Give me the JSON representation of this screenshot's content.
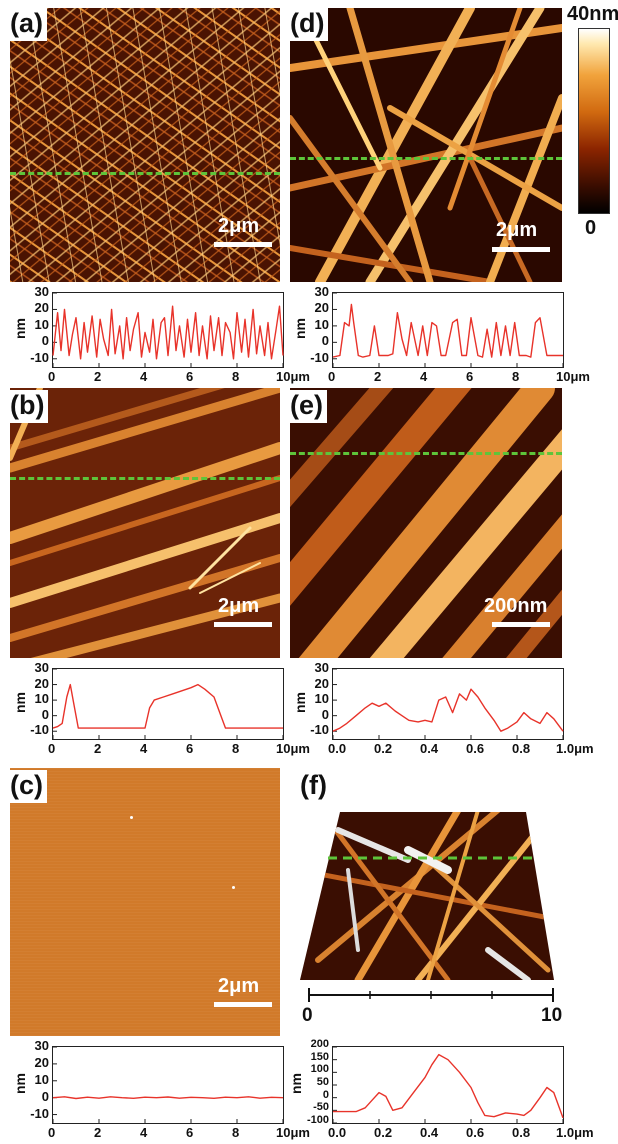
{
  "panels": {
    "a": {
      "label": "(a)",
      "scalebar": "2μm"
    },
    "b": {
      "label": "(b)",
      "scalebar": "2μm"
    },
    "c": {
      "label": "(c)",
      "scalebar": "2μm"
    },
    "d": {
      "label": "(d)",
      "scalebar": "2μm"
    },
    "e": {
      "label": "(e)",
      "scalebar": "200nm"
    },
    "f": {
      "label": "(f)",
      "axis_ticks": [
        "0",
        "10"
      ]
    }
  },
  "colorbar": {
    "max": "40nm",
    "min": "0"
  },
  "colors": {
    "guide_line": "#5ec43a",
    "profile": "#e8332a",
    "afm_dark": "#3a0d00",
    "afm_bright": "#ffd58a",
    "flat": "#d17a2a"
  },
  "chart_data": [
    {
      "type": "line",
      "panel": "a",
      "ylabel": "nm",
      "xunit": "μm",
      "x_ticks": [
        "0",
        "2",
        "4",
        "6",
        "8",
        "10μm"
      ],
      "y_ticks": [
        "30",
        "20",
        "10",
        "0",
        "-10"
      ],
      "xlim": [
        0,
        10
      ],
      "ylim": [
        -15,
        30
      ],
      "x": [
        0,
        0.2,
        0.35,
        0.5,
        0.7,
        0.85,
        1.0,
        1.2,
        1.35,
        1.5,
        1.7,
        1.9,
        2.05,
        2.2,
        2.4,
        2.55,
        2.7,
        2.9,
        3.05,
        3.2,
        3.35,
        3.5,
        3.7,
        3.85,
        4.0,
        4.2,
        4.35,
        4.5,
        4.7,
        4.85,
        5.0,
        5.2,
        5.35,
        5.5,
        5.7,
        5.85,
        6.0,
        6.2,
        6.35,
        6.5,
        6.7,
        6.85,
        7.0,
        7.2,
        7.35,
        7.5,
        7.7,
        7.85,
        8.0,
        8.2,
        8.35,
        8.5,
        8.7,
        8.85,
        9.0,
        9.2,
        9.35,
        9.5,
        9.7,
        9.85,
        10
      ],
      "y": [
        -8,
        18,
        -5,
        20,
        -8,
        5,
        15,
        -10,
        12,
        -6,
        16,
        -9,
        14,
        2,
        -8,
        20,
        -7,
        10,
        -10,
        15,
        -5,
        8,
        18,
        -9,
        6,
        -6,
        14,
        -10,
        12,
        15,
        -8,
        22,
        -5,
        10,
        -9,
        14,
        -6,
        18,
        -8,
        10,
        -10,
        16,
        -5,
        15,
        -8,
        12,
        6,
        -10,
        18,
        -6,
        14,
        -9,
        20,
        -7,
        10,
        -8,
        12,
        -10,
        8,
        22,
        -8
      ]
    },
    {
      "type": "line",
      "panel": "d",
      "ylabel": "nm",
      "xunit": "μm",
      "x_ticks": [
        "0",
        "2",
        "4",
        "6",
        "8",
        "10μm"
      ],
      "y_ticks": [
        "30",
        "20",
        "10",
        "0",
        "-10"
      ],
      "xlim": [
        0,
        10
      ],
      "ylim": [
        -15,
        30
      ],
      "x": [
        0,
        0.3,
        0.5,
        0.7,
        0.8,
        0.9,
        1.1,
        1.3,
        1.6,
        1.8,
        2.0,
        2.4,
        2.6,
        2.8,
        3.0,
        3.2,
        3.4,
        3.7,
        3.9,
        4.1,
        4.3,
        4.5,
        4.7,
        4.9,
        5.2,
        5.4,
        5.6,
        5.8,
        6.0,
        6.3,
        6.5,
        6.7,
        6.9,
        7.1,
        7.3,
        7.5,
        7.7,
        7.9,
        8.1,
        8.4,
        8.6,
        8.8,
        9.0,
        9.3,
        9.6,
        10
      ],
      "y": [
        -9,
        -8,
        12,
        10,
        23,
        12,
        -8,
        -9,
        -8,
        10,
        -8,
        -8,
        -7,
        18,
        2,
        -8,
        12,
        -8,
        10,
        -8,
        12,
        10,
        -8,
        -8,
        12,
        14,
        -8,
        -8,
        15,
        -8,
        -9,
        8,
        -9,
        12,
        -8,
        10,
        -8,
        12,
        -8,
        -8,
        -9,
        12,
        15,
        -8,
        -8,
        -8
      ]
    },
    {
      "type": "line",
      "panel": "b",
      "ylabel": "nm",
      "xunit": "μm",
      "x_ticks": [
        "0",
        "2",
        "4",
        "6",
        "8",
        "10μm"
      ],
      "y_ticks": [
        "30",
        "20",
        "10",
        "0",
        "-10"
      ],
      "xlim": [
        0,
        10
      ],
      "ylim": [
        -15,
        30
      ],
      "x": [
        0,
        0.2,
        0.4,
        0.6,
        0.75,
        0.9,
        1.1,
        1.5,
        2,
        2.5,
        3,
        3.5,
        4.0,
        4.2,
        4.4,
        4.8,
        5.2,
        5.6,
        6.0,
        6.3,
        6.6,
        7.0,
        7.3,
        7.5,
        7.8,
        8.3,
        9,
        10
      ],
      "y": [
        -8,
        -7,
        -5,
        12,
        20,
        8,
        -8,
        -8,
        -8,
        -8,
        -8,
        -8,
        -8,
        5,
        10,
        12,
        14,
        16,
        18,
        20,
        17,
        12,
        0,
        -8,
        -8,
        -8,
        -8,
        -8
      ]
    },
    {
      "type": "line",
      "panel": "e",
      "ylabel": "nm",
      "xunit": "μm",
      "x_ticks": [
        "0.0",
        "0.2",
        "0.4",
        "0.6",
        "0.8",
        "1.0μm"
      ],
      "y_ticks": [
        "30",
        "20",
        "10",
        "0",
        "-10"
      ],
      "xlim": [
        0,
        1
      ],
      "ylim": [
        -15,
        30
      ],
      "x": [
        0,
        0.03,
        0.06,
        0.1,
        0.14,
        0.17,
        0.2,
        0.23,
        0.27,
        0.3,
        0.33,
        0.37,
        0.4,
        0.43,
        0.46,
        0.49,
        0.52,
        0.55,
        0.58,
        0.6,
        0.63,
        0.66,
        0.7,
        0.73,
        0.76,
        0.8,
        0.83,
        0.86,
        0.9,
        0.93,
        0.96,
        1.0
      ],
      "y": [
        -10,
        -8,
        -5,
        0,
        5,
        8,
        6,
        8,
        3,
        0,
        -3,
        -4,
        -3,
        -4,
        10,
        12,
        2,
        14,
        10,
        17,
        12,
        5,
        -3,
        -10,
        -8,
        -4,
        2,
        -2,
        -5,
        2,
        -2,
        -10
      ]
    },
    {
      "type": "line",
      "panel": "c",
      "ylabel": "nm",
      "xunit": "μm",
      "x_ticks": [
        "0",
        "2",
        "4",
        "6",
        "8",
        "10μm"
      ],
      "y_ticks": [
        "30",
        "20",
        "10",
        "0",
        "-10"
      ],
      "xlim": [
        0,
        10
      ],
      "ylim": [
        -15,
        30
      ],
      "x": [
        0,
        0.5,
        1,
        1.5,
        2,
        2.5,
        3,
        3.5,
        4,
        4.5,
        5,
        5.5,
        6,
        6.5,
        7,
        7.5,
        8,
        8.5,
        9,
        9.5,
        10
      ],
      "y": [
        0,
        0.5,
        -0.5,
        0.3,
        -0.3,
        0.5,
        0,
        -0.4,
        0.3,
        0,
        0.4,
        -0.3,
        0.2,
        0,
        -0.4,
        0.3,
        0,
        0.5,
        -0.3,
        0.2,
        0
      ]
    },
    {
      "type": "line",
      "panel": "f",
      "ylabel": "nm",
      "xunit": "μm",
      "x_ticks": [
        "0.0",
        "0.2",
        "0.4",
        "0.6",
        "0.8",
        "1.0μm"
      ],
      "y_ticks": [
        "200",
        "150",
        "100",
        "50",
        "0",
        "-50",
        "-100"
      ],
      "xlim": [
        0,
        1
      ],
      "ylim": [
        -100,
        200
      ],
      "x": [
        0,
        0.05,
        0.1,
        0.14,
        0.17,
        0.2,
        0.23,
        0.26,
        0.3,
        0.35,
        0.4,
        0.43,
        0.46,
        0.5,
        0.55,
        0.6,
        0.63,
        0.66,
        0.7,
        0.75,
        0.8,
        0.83,
        0.86,
        0.9,
        0.93,
        0.96,
        1.0
      ],
      "y": [
        -55,
        -55,
        -55,
        -40,
        -10,
        20,
        5,
        -50,
        -40,
        20,
        80,
        130,
        170,
        150,
        100,
        40,
        -20,
        -70,
        -75,
        -60,
        -65,
        -70,
        -50,
        0,
        40,
        20,
        -80
      ]
    }
  ]
}
